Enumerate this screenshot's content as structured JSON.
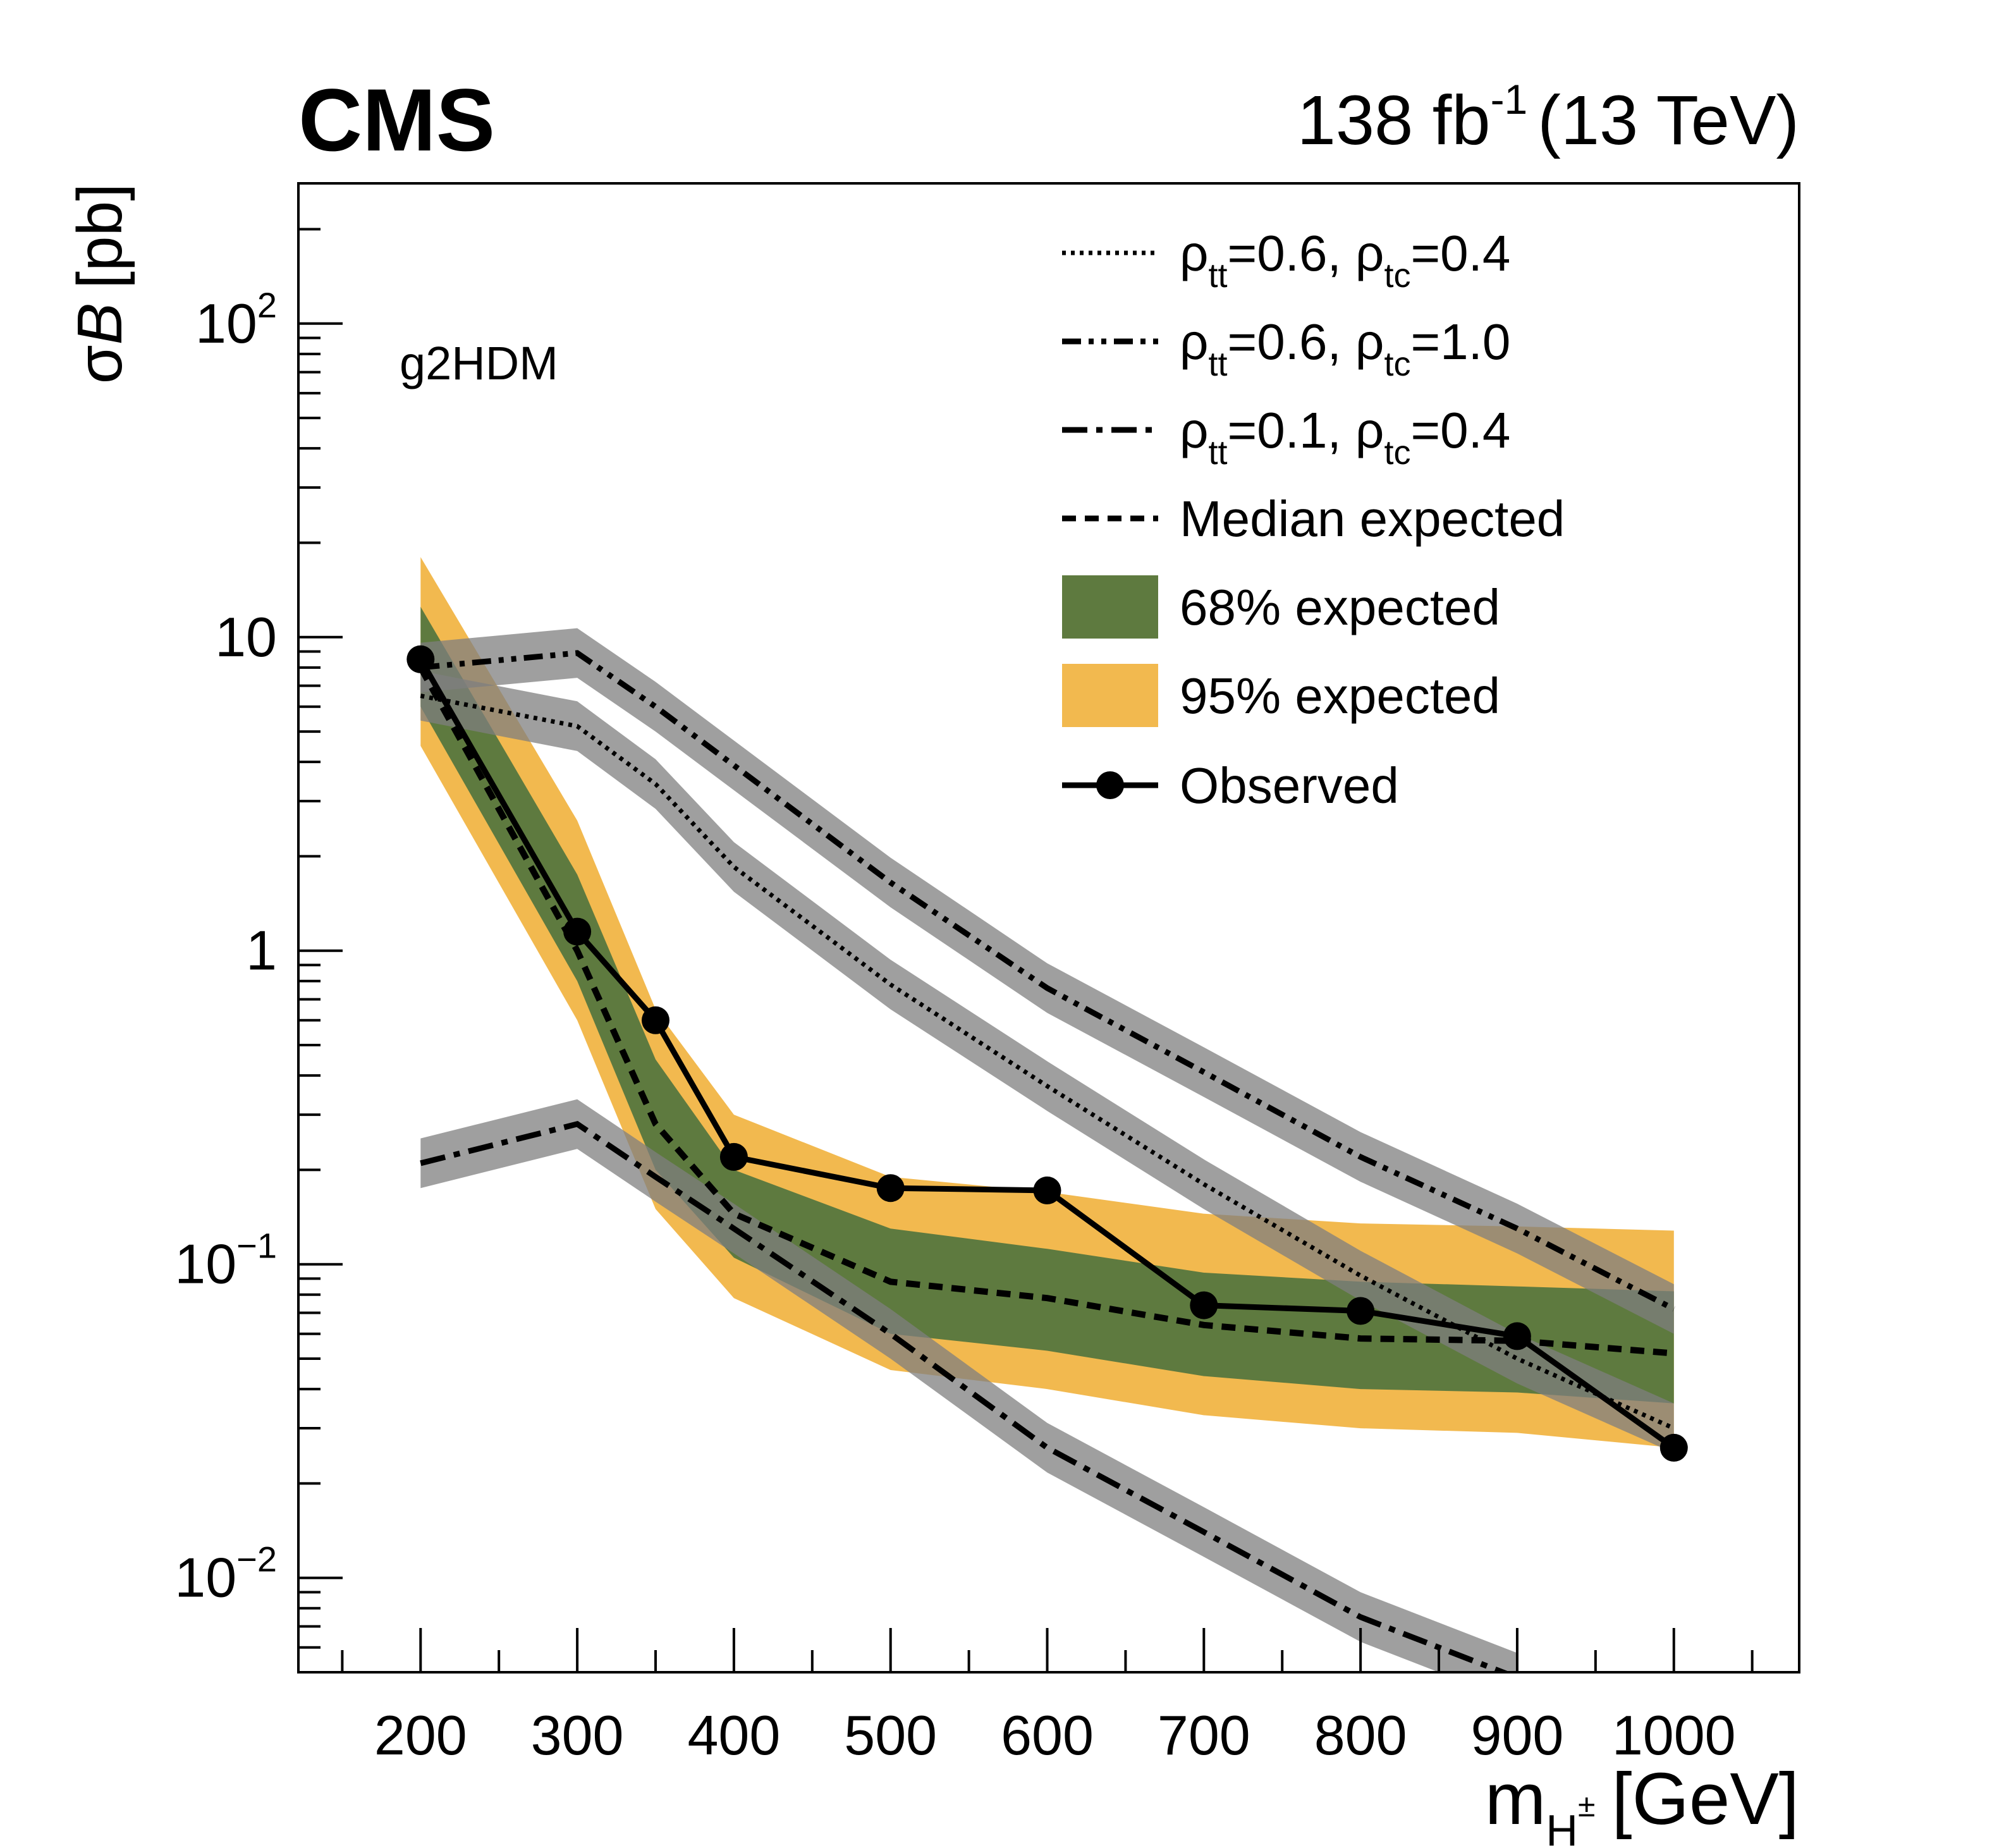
{
  "header": {
    "experiment": "CMS",
    "lumi_value": "138 fb",
    "lumi_exp": "-1",
    "energy": "(13 TeV)"
  },
  "model_label": "g2HDM",
  "axes": {
    "x_label_main": "m",
    "x_label_sub": "H",
    "x_label_sup": "±",
    "x_label_unit": "[GeV]",
    "y_label_sigma": "σ",
    "y_label_B": "B",
    "y_label_unit": "[pb]",
    "x_ticks": [
      "200",
      "300",
      "400",
      "500",
      "600",
      "700",
      "800",
      "900",
      "1000"
    ],
    "y_ticks": [
      {
        "base": "10",
        "exp": "−2",
        "value": 0.01
      },
      {
        "base": "10",
        "exp": "−1",
        "value": 0.1
      },
      {
        "base": "1",
        "exp": "",
        "value": 1
      },
      {
        "base": "10",
        "exp": "",
        "value": 10
      },
      {
        "base": "10",
        "exp": "2",
        "value": 100
      }
    ]
  },
  "legend": [
    {
      "key": "rho1",
      "style": "dotted",
      "rho": "ρ",
      "sub1": "tt",
      "mid": "=0.6, ",
      "sub2": "tc",
      "end": "=0.4"
    },
    {
      "key": "rho2",
      "style": "dashdotdot",
      "rho": "ρ",
      "sub1": "tt",
      "mid": "=0.6, ",
      "sub2": "tc",
      "end": "=1.0"
    },
    {
      "key": "rho3",
      "style": "dashdot",
      "rho": "ρ",
      "sub1": "tt",
      "mid": "=0.1, ",
      "sub2": "tc",
      "end": "=0.4"
    },
    {
      "key": "median",
      "style": "dashed",
      "text": "Median expected"
    },
    {
      "key": "band68",
      "style": "box",
      "color": "#5e7a3f",
      "text": "68% expected"
    },
    {
      "key": "band95",
      "style": "box",
      "color": "#f2b94f",
      "text": "95% expected"
    },
    {
      "key": "observed",
      "style": "marker",
      "text": "Observed"
    }
  ],
  "colors": {
    "band68": "#5e7a3f",
    "band95": "#f2b94f",
    "theory_band": "#7f7f7f"
  },
  "chart_data": {
    "type": "line",
    "title": "CMS",
    "xlabel": "m_H± [GeV]",
    "ylabel": "σB [pb]",
    "xlim": [
      122,
      1080
    ],
    "ylim": [
      0.005,
      280
    ],
    "yscale": "log",
    "x": [
      200,
      300,
      350,
      400,
      500,
      600,
      700,
      800,
      900,
      1000
    ],
    "observed": [
      8.5,
      1.15,
      0.6,
      0.22,
      0.175,
      0.172,
      0.074,
      0.071,
      0.059,
      0.026
    ],
    "median_expected": [
      8.0,
      1.0,
      0.28,
      0.145,
      0.088,
      0.078,
      0.064,
      0.058,
      0.057,
      0.052
    ],
    "band68_low": [
      6.0,
      0.8,
      0.2,
      0.105,
      0.06,
      0.053,
      0.044,
      0.04,
      0.039,
      0.036
    ],
    "band68_high": [
      12.5,
      1.75,
      0.45,
      0.2,
      0.13,
      0.112,
      0.094,
      0.088,
      0.085,
      0.082
    ],
    "band95_low": [
      4.5,
      0.6,
      0.15,
      0.078,
      0.046,
      0.04,
      0.033,
      0.03,
      0.029,
      0.026
    ],
    "band95_high": [
      18.0,
      2.6,
      0.65,
      0.3,
      0.19,
      0.17,
      0.145,
      0.135,
      0.132,
      0.128
    ],
    "series": [
      {
        "name": "ρtt=0.6, ρtc=0.4",
        "x": [
          200,
          300,
          350,
          400,
          500,
          600,
          700,
          800,
          900,
          1000
        ],
        "values": [
          6.5,
          5.2,
          3.4,
          1.85,
          0.78,
          0.37,
          0.18,
          0.092,
          0.05,
          0.03
        ],
        "band_width_factor": 1.2
      },
      {
        "name": "ρtt=0.6, ρtc=1.0",
        "x": [
          200,
          300,
          350,
          400,
          500,
          600,
          700,
          800,
          900,
          1000
        ],
        "values": [
          8.0,
          8.9,
          6.0,
          3.9,
          1.65,
          0.76,
          0.41,
          0.22,
          0.13,
          0.072
        ],
        "band_width_factor": 1.2
      },
      {
        "name": "ρtt=0.1, ρtc=0.4",
        "x": [
          200,
          300,
          350,
          400,
          500,
          600,
          700,
          800,
          900
        ],
        "values": [
          0.21,
          0.28,
          0.19,
          0.13,
          0.06,
          0.026,
          0.014,
          0.0075,
          0.0048
        ],
        "band_width_factor": 1.2
      }
    ]
  }
}
